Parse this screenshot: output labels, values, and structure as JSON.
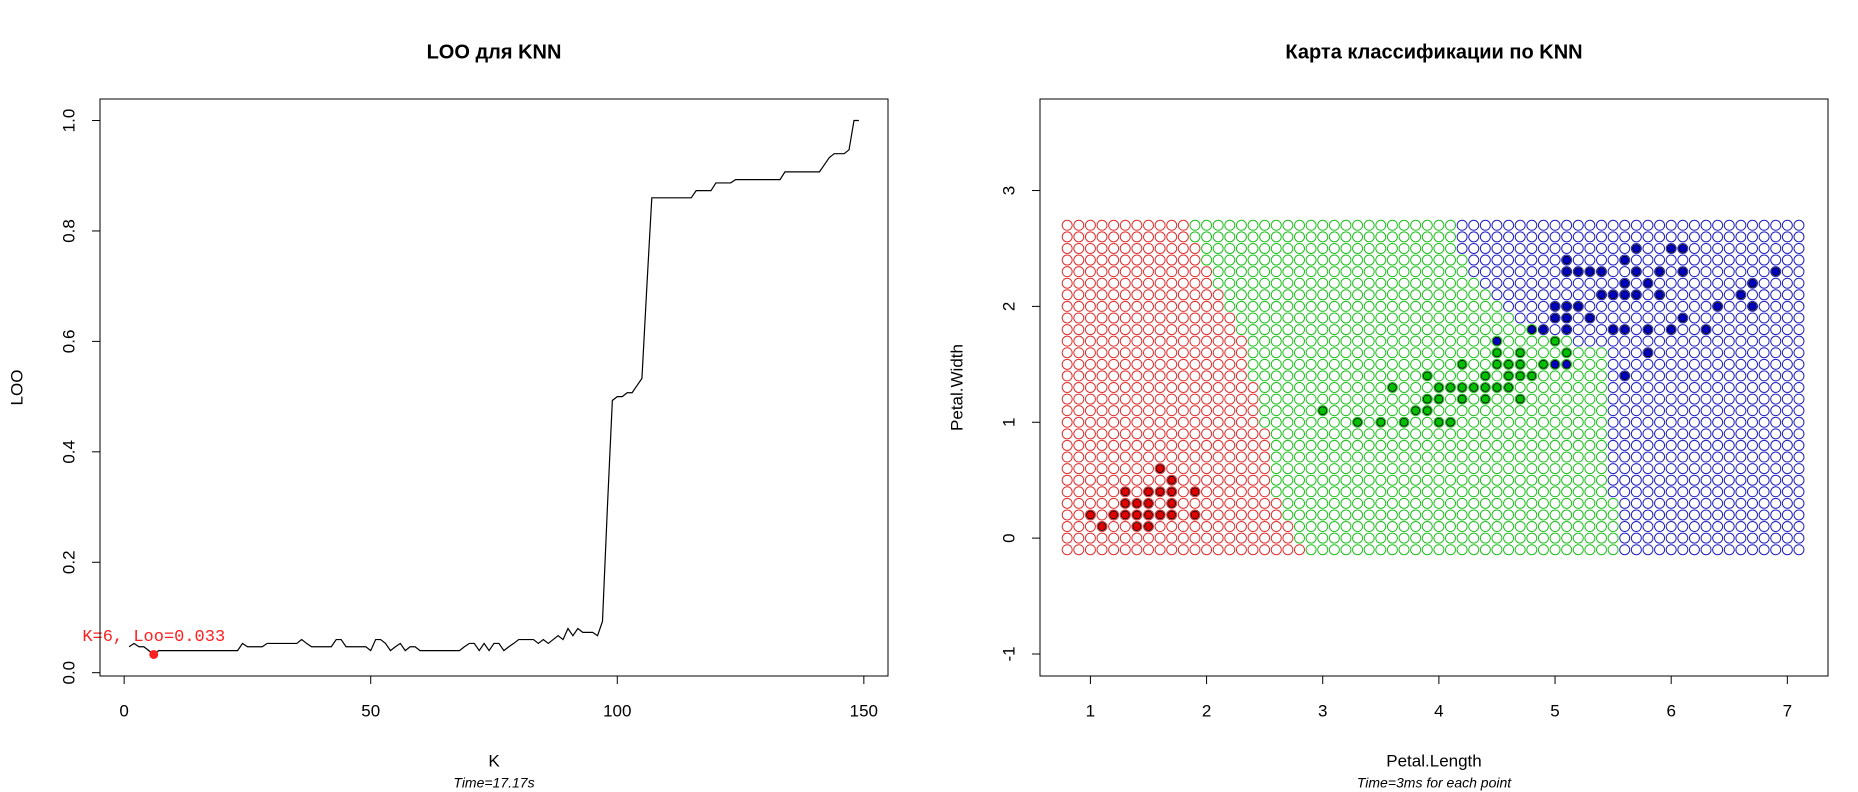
{
  "chart_data": [
    {
      "type": "line",
      "title": "LOO для KNN",
      "xlabel": "K",
      "ylabel": "LOO",
      "subtitle": "Time=17.17s",
      "color": "#000000",
      "x": [
        1,
        2,
        3,
        4,
        5,
        6,
        7,
        8,
        9,
        10,
        11,
        12,
        13,
        14,
        15,
        16,
        17,
        18,
        19,
        20,
        21,
        22,
        23,
        24,
        25,
        26,
        27,
        28,
        29,
        30,
        31,
        32,
        33,
        34,
        35,
        36,
        37,
        38,
        39,
        40,
        41,
        42,
        43,
        44,
        45,
        46,
        47,
        48,
        49,
        50,
        51,
        52,
        53,
        54,
        55,
        56,
        57,
        58,
        59,
        60,
        61,
        62,
        63,
        64,
        65,
        66,
        67,
        68,
        69,
        70,
        71,
        72,
        73,
        74,
        75,
        76,
        77,
        78,
        79,
        80,
        81,
        82,
        83,
        84,
        85,
        86,
        87,
        88,
        89,
        90,
        91,
        92,
        93,
        94,
        95,
        96,
        97,
        98,
        99,
        100,
        101,
        102,
        103,
        104,
        105,
        106,
        107,
        108,
        109,
        110,
        111,
        112,
        113,
        114,
        115,
        116,
        117,
        118,
        119,
        120,
        121,
        122,
        123,
        124,
        125,
        126,
        127,
        128,
        129,
        130,
        131,
        132,
        133,
        134,
        135,
        136,
        137,
        138,
        139,
        140,
        141,
        142,
        143,
        144,
        145,
        146,
        147,
        148,
        149
      ],
      "values": [
        0.047,
        0.053,
        0.047,
        0.047,
        0.04,
        0.033,
        0.04,
        0.04,
        0.04,
        0.04,
        0.04,
        0.04,
        0.04,
        0.04,
        0.04,
        0.04,
        0.04,
        0.04,
        0.04,
        0.04,
        0.04,
        0.04,
        0.04,
        0.053,
        0.047,
        0.047,
        0.047,
        0.047,
        0.053,
        0.053,
        0.053,
        0.053,
        0.053,
        0.053,
        0.053,
        0.06,
        0.053,
        0.047,
        0.047,
        0.047,
        0.047,
        0.047,
        0.06,
        0.06,
        0.047,
        0.047,
        0.047,
        0.047,
        0.047,
        0.04,
        0.06,
        0.06,
        0.053,
        0.04,
        0.047,
        0.053,
        0.04,
        0.047,
        0.047,
        0.04,
        0.04,
        0.04,
        0.04,
        0.04,
        0.04,
        0.04,
        0.04,
        0.04,
        0.047,
        0.053,
        0.053,
        0.04,
        0.053,
        0.04,
        0.053,
        0.053,
        0.04,
        0.047,
        0.053,
        0.06,
        0.06,
        0.06,
        0.06,
        0.053,
        0.06,
        0.053,
        0.06,
        0.067,
        0.06,
        0.08,
        0.067,
        0.08,
        0.073,
        0.073,
        0.073,
        0.067,
        0.093,
        0.3,
        0.493,
        0.5,
        0.5,
        0.507,
        0.507,
        0.52,
        0.533,
        0.7,
        0.86,
        0.86,
        0.86,
        0.86,
        0.86,
        0.86,
        0.86,
        0.86,
        0.86,
        0.873,
        0.873,
        0.873,
        0.873,
        0.887,
        0.887,
        0.887,
        0.887,
        0.893,
        0.893,
        0.893,
        0.893,
        0.893,
        0.893,
        0.893,
        0.893,
        0.893,
        0.893,
        0.907,
        0.907,
        0.907,
        0.907,
        0.907,
        0.907,
        0.907,
        0.907,
        0.92,
        0.933,
        0.94,
        0.94,
        0.94,
        0.947,
        1.0,
        1.0
      ],
      "xlim": [
        -4.9,
        154.9
      ],
      "ylim": [
        -0.006,
        1.039
      ],
      "xticks": [
        0,
        50,
        100,
        150
      ],
      "yticks": [
        {
          "value": 0,
          "label": "0.0"
        },
        0.2,
        0.4,
        0.6,
        0.8,
        {
          "value": 1,
          "label": "1.0"
        }
      ],
      "highlight": {
        "x": 6,
        "y": 0.033,
        "label": "K=6, Loo=0.033",
        "color": "#ff2020"
      }
    },
    {
      "type": "classification_map",
      "title": "Карта классификации по KNN",
      "xlabel": "Petal.Length",
      "ylabel": "Petal.Width",
      "subtitle": "Time=3ms for each point",
      "xlim": [
        0.566,
        7.35
      ],
      "ylim": [
        -1.19,
        3.79
      ],
      "xticks": [
        1,
        2,
        3,
        4,
        5,
        6,
        7
      ],
      "yticks": [
        -1,
        0,
        1,
        2,
        3
      ],
      "grid_x": [
        0.8,
        0.9,
        1.0,
        1.1,
        1.2,
        1.3,
        1.4,
        1.5,
        1.6,
        1.7,
        1.8,
        1.9,
        2.0,
        2.1,
        2.2,
        2.3,
        2.4,
        2.5,
        2.6,
        2.7,
        2.8,
        2.9,
        3.0,
        3.1,
        3.2,
        3.3,
        3.4,
        3.5,
        3.6,
        3.7,
        3.8,
        3.9,
        4.0,
        4.1,
        4.2,
        4.3,
        4.4,
        4.5,
        4.6,
        4.7,
        4.8,
        4.9,
        5.0,
        5.1,
        5.2,
        5.3,
        5.4,
        5.5,
        5.6,
        5.7,
        5.8,
        5.9,
        6.0,
        6.1,
        6.2,
        6.3,
        6.4,
        6.5,
        6.6,
        6.7,
        6.8,
        6.9,
        7.0,
        7.1
      ],
      "grid_y": [
        -0.1,
        0.0,
        0.1,
        0.2,
        0.3,
        0.4,
        0.5,
        0.6,
        0.7,
        0.8,
        0.9,
        1.0,
        1.1,
        1.2,
        1.3,
        1.4,
        1.5,
        1.6,
        1.7,
        1.8,
        1.9,
        2.0,
        2.1,
        2.2,
        2.3,
        2.4,
        2.5,
        2.6,
        2.7
      ],
      "boundary_1": [
        2.8,
        2.7,
        2.7,
        2.6,
        2.6,
        2.5,
        2.5,
        2.5,
        2.5,
        2.5,
        2.5,
        2.4,
        2.4,
        2.4,
        2.4,
        2.3,
        2.3,
        2.3,
        2.3,
        2.2,
        2.2,
        2.1,
        2.1,
        2.0,
        2.0,
        1.9,
        1.9,
        1.8,
        1.8
      ],
      "boundary_2": [
        5.5,
        5.5,
        5.5,
        5.5,
        5.5,
        5.4,
        5.4,
        5.4,
        5.4,
        5.4,
        5.4,
        5.4,
        5.4,
        5.4,
        5.4,
        5.4,
        5.4,
        5.4,
        5.1,
        4.8,
        4.6,
        4.5,
        4.4,
        4.3,
        4.2,
        4.2,
        4.1,
        4.1,
        4.1
      ],
      "region_colors": [
        "#e03030",
        "#20c020",
        "#2020c0"
      ],
      "series": [
        {
          "color": "#e00000",
          "x": [
            1.0,
            1.1,
            1.2,
            1.3,
            1.3,
            1.3,
            1.4,
            1.4,
            1.4,
            1.5,
            1.5,
            1.5,
            1.5,
            1.6,
            1.6,
            1.6,
            1.7,
            1.7,
            1.7,
            1.7,
            1.9,
            1.9
          ],
          "y": [
            0.2,
            0.1,
            0.2,
            0.2,
            0.3,
            0.4,
            0.1,
            0.2,
            0.3,
            0.1,
            0.2,
            0.3,
            0.4,
            0.2,
            0.4,
            0.6,
            0.2,
            0.3,
            0.4,
            0.5,
            0.2,
            0.4
          ]
        },
        {
          "color": "#00c000",
          "x": [
            3.0,
            3.3,
            3.5,
            3.6,
            3.7,
            3.8,
            3.9,
            3.9,
            3.9,
            4.0,
            4.0,
            4.0,
            4.1,
            4.1,
            4.2,
            4.2,
            4.2,
            4.3,
            4.4,
            4.4,
            4.4,
            4.5,
            4.5,
            4.5,
            4.6,
            4.6,
            4.6,
            4.7,
            4.7,
            4.7,
            4.7,
            4.8,
            4.8,
            4.9,
            5.0,
            5.1
          ],
          "y": [
            1.1,
            1.0,
            1.0,
            1.3,
            1.0,
            1.1,
            1.1,
            1.2,
            1.4,
            1.0,
            1.2,
            1.3,
            1.0,
            1.3,
            1.2,
            1.3,
            1.5,
            1.3,
            1.2,
            1.3,
            1.4,
            1.3,
            1.5,
            1.6,
            1.3,
            1.4,
            1.5,
            1.2,
            1.4,
            1.5,
            1.6,
            1.4,
            1.8,
            1.5,
            1.7,
            1.6
          ]
        },
        {
          "color": "#0000c0",
          "x": [
            4.5,
            4.8,
            4.9,
            5.0,
            5.0,
            5.0,
            5.1,
            5.1,
            5.1,
            5.1,
            5.1,
            5.1,
            5.2,
            5.2,
            5.3,
            5.3,
            5.4,
            5.4,
            5.5,
            5.5,
            5.6,
            5.6,
            5.6,
            5.6,
            5.6,
            5.7,
            5.7,
            5.7,
            5.8,
            5.8,
            5.8,
            5.9,
            5.9,
            6.0,
            6.0,
            6.1,
            6.1,
            6.1,
            6.3,
            6.4,
            6.6,
            6.7,
            6.7,
            6.9
          ],
          "y": [
            1.7,
            1.8,
            1.8,
            1.5,
            1.9,
            2.0,
            1.5,
            1.8,
            1.9,
            2.0,
            2.3,
            2.4,
            2.0,
            2.3,
            1.9,
            2.3,
            2.1,
            2.3,
            1.8,
            2.1,
            1.4,
            1.8,
            2.1,
            2.2,
            2.4,
            2.1,
            2.3,
            2.5,
            1.6,
            1.8,
            2.2,
            2.1,
            2.3,
            1.8,
            2.5,
            1.9,
            2.3,
            2.5,
            1.8,
            2.0,
            2.1,
            2.0,
            2.2,
            2.3
          ]
        }
      ]
    }
  ]
}
